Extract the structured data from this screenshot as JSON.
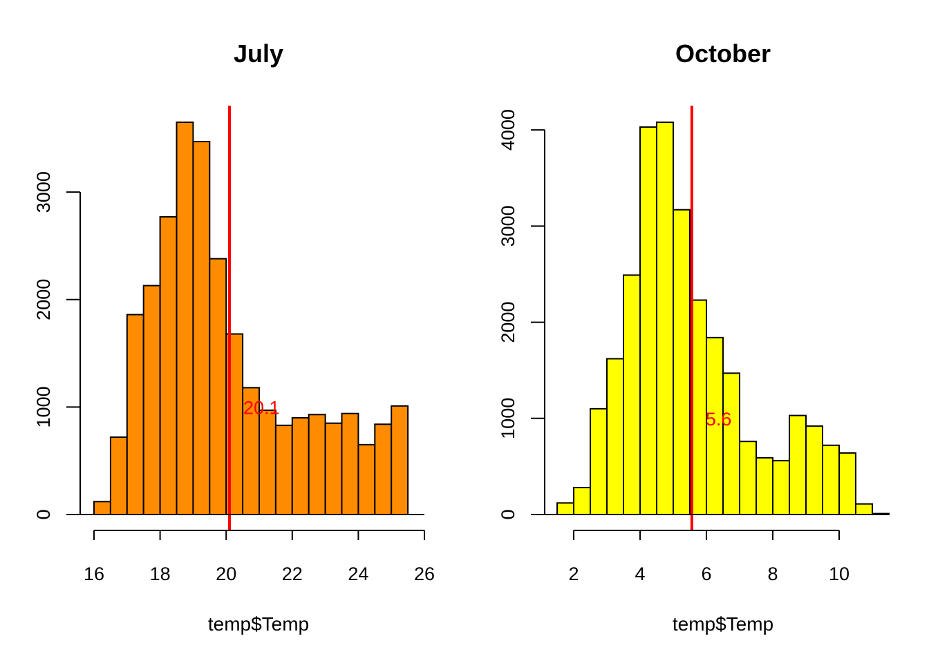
{
  "chart_data": [
    {
      "type": "histogram",
      "title": "July",
      "xlabel": "temp$Temp",
      "ylabel": "",
      "bar_color": "#FF8C00",
      "bins": [
        16,
        16.5,
        17,
        17.5,
        18,
        18.5,
        19,
        19.5,
        20,
        20.5,
        21,
        21.5,
        22,
        22.5,
        23,
        23.5,
        24,
        24.5,
        25,
        25.5
      ],
      "values": [
        120,
        720,
        1860,
        2130,
        2770,
        3650,
        3470,
        2380,
        1680,
        1180,
        970,
        830,
        900,
        930,
        850,
        940,
        650,
        840,
        1010
      ],
      "x_ticks": [
        16,
        18,
        20,
        22,
        24,
        26
      ],
      "x_tick_labels": [
        "16",
        "18",
        "20",
        "22",
        "24",
        "26"
      ],
      "y_ticks": [
        0,
        1000,
        2000,
        3000
      ],
      "y_tick_labels": [
        "0",
        "1000",
        "2000",
        "3000"
      ],
      "xlim": [
        16,
        26
      ],
      "ylim": [
        0,
        3650
      ],
      "vline": {
        "value": 20.1,
        "label": "20.1",
        "label_y": 1000,
        "color": "#FF0000"
      }
    },
    {
      "type": "histogram",
      "title": "October",
      "xlabel": "temp$Temp",
      "ylabel": "",
      "bar_color": "#FFFF00",
      "bins": [
        1.5,
        2,
        2.5,
        3,
        3.5,
        4,
        4.5,
        5,
        5.5,
        6,
        6.5,
        7,
        7.5,
        8,
        8.5,
        9,
        9.5,
        10,
        10.5,
        11,
        11.5
      ],
      "values": [
        120,
        280,
        1100,
        1620,
        2490,
        4030,
        4080,
        3170,
        2230,
        1840,
        1470,
        760,
        590,
        560,
        1030,
        920,
        720,
        640,
        110,
        10
      ],
      "x_ticks": [
        2,
        4,
        6,
        8,
        10
      ],
      "x_tick_labels": [
        "2",
        "4",
        "6",
        "8",
        "10"
      ],
      "y_ticks": [
        0,
        1000,
        2000,
        3000,
        4000
      ],
      "y_tick_labels": [
        "0",
        "1000",
        "2000",
        "3000",
        "4000"
      ],
      "xlim": [
        1.5,
        11.5
      ],
      "ylim": [
        0,
        4080
      ],
      "vline": {
        "value": 5.56,
        "label": "5.6",
        "label_y": 1000,
        "color": "#FF0000"
      }
    }
  ]
}
